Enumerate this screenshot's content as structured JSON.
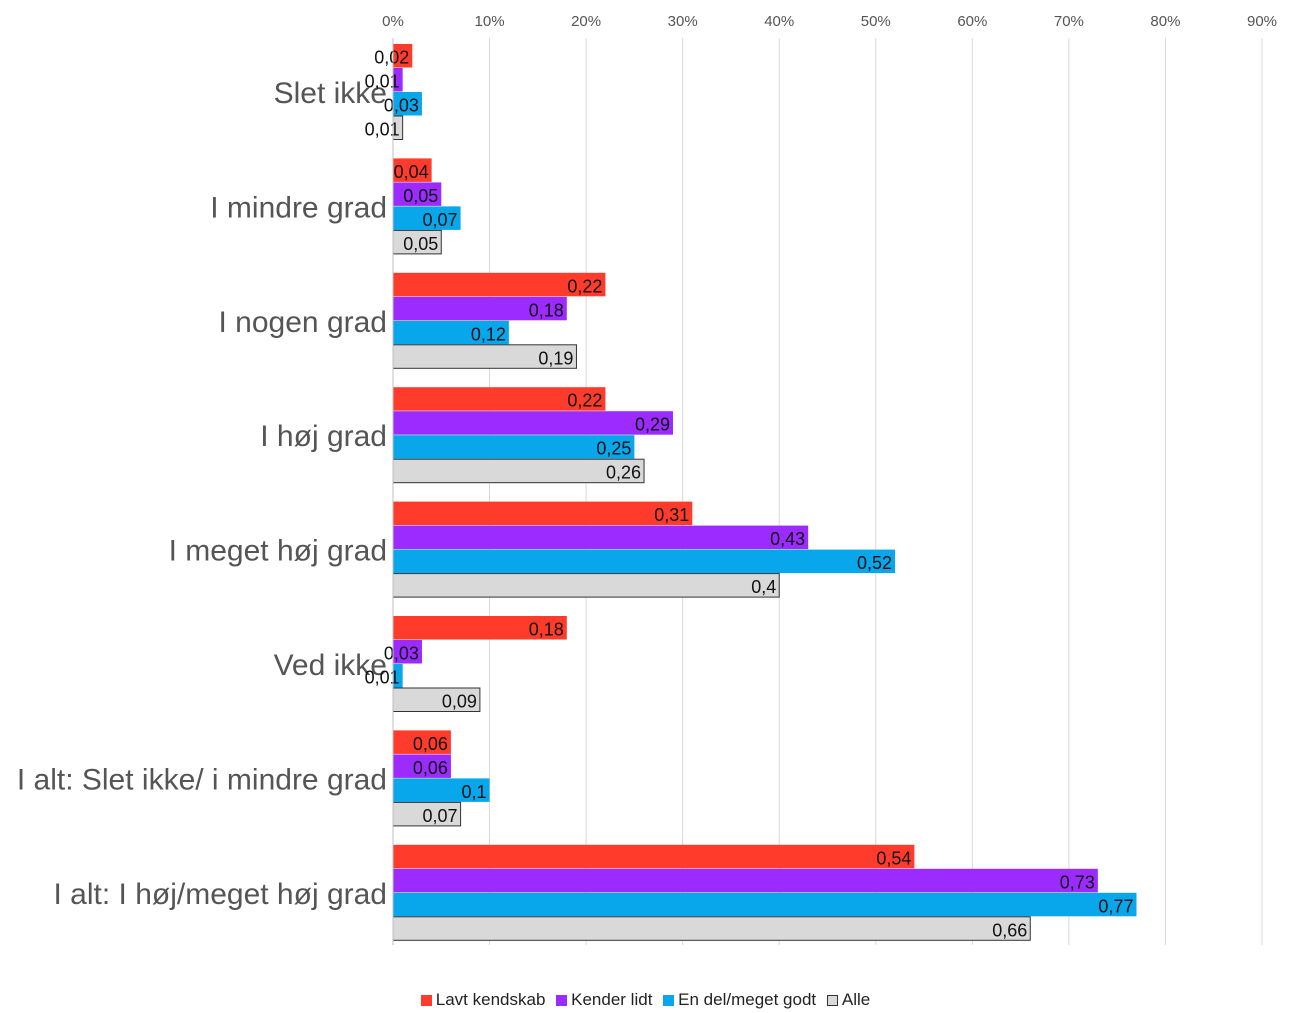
{
  "chart_data": {
    "type": "bar",
    "orientation": "horizontal",
    "categories": [
      "Slet ikke",
      "I mindre grad",
      "I nogen grad",
      "I høj grad",
      "I meget høj grad",
      "Ved ikke",
      "I alt: Slet ikke/ i mindre grad",
      "I alt: I høj/meget høj grad"
    ],
    "series": [
      {
        "name": "Lavt kendskab",
        "color": "#ff3b2b",
        "values": [
          0.02,
          0.04,
          0.22,
          0.22,
          0.31,
          0.18,
          0.06,
          0.54
        ],
        "labels": [
          "0,02",
          "0,04",
          "0,22",
          "0,22",
          "0,31",
          "0,18",
          "0,06",
          "0,54"
        ]
      },
      {
        "name": "Kender lidt",
        "color": "#9b2bff",
        "values": [
          0.01,
          0.05,
          0.18,
          0.29,
          0.43,
          0.03,
          0.06,
          0.73
        ],
        "labels": [
          "0,01",
          "0,05",
          "0,18",
          "0,29",
          "0,43",
          "0,03",
          "0,06",
          "0,73"
        ]
      },
      {
        "name": "En del/meget godt",
        "color": "#08a6ea",
        "values": [
          0.03,
          0.07,
          0.12,
          0.25,
          0.52,
          0.01,
          0.1,
          0.77
        ],
        "labels": [
          "0,03",
          "0,07",
          "0,12",
          "0,25",
          "0,52",
          "0,01",
          "0,1",
          "0,77"
        ]
      },
      {
        "name": "Alle",
        "color": "#d9d9d9",
        "values": [
          0.01,
          0.05,
          0.19,
          0.26,
          0.4,
          0.09,
          0.07,
          0.66
        ],
        "labels": [
          "0,01",
          "0,05",
          "0,19",
          "0,26",
          "0,4",
          "0,09",
          "0,07",
          "0,66"
        ]
      }
    ],
    "xlim": [
      0,
      0.9
    ],
    "ticks": [
      "0%",
      "10%",
      "20%",
      "30%",
      "40%",
      "50%",
      "60%",
      "70%",
      "80%",
      "90%"
    ],
    "grid": true,
    "legend_position": "bottom"
  }
}
